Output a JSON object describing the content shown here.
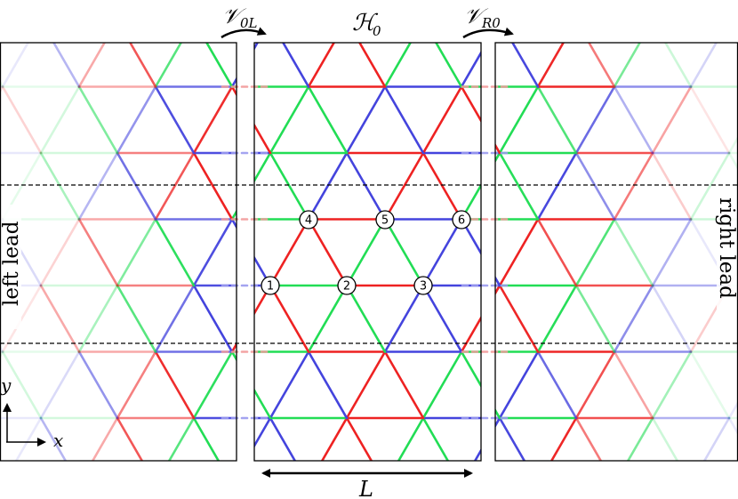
{
  "labels": {
    "coupling_left": "𝒱",
    "coupling_left_sub": "0L",
    "coupling_right": "𝒱",
    "coupling_right_sub": "R0",
    "hamiltonian": "ℋ",
    "hamiltonian_sub": "0",
    "left_lead": "left lead",
    "right_lead": "right lead",
    "length": "L",
    "axis_x": "x",
    "axis_y": "y"
  },
  "sites": [
    {
      "id": "1",
      "label": "1"
    },
    {
      "id": "2",
      "label": "2"
    },
    {
      "id": "3",
      "label": "3"
    },
    {
      "id": "4",
      "label": "4"
    },
    {
      "id": "5",
      "label": "5"
    },
    {
      "id": "6",
      "label": "6"
    }
  ],
  "colors": {
    "red": "#ee2222",
    "green": "#22dd55",
    "blue": "#4444dd",
    "frame": "#000000",
    "dashed": "#000000"
  }
}
